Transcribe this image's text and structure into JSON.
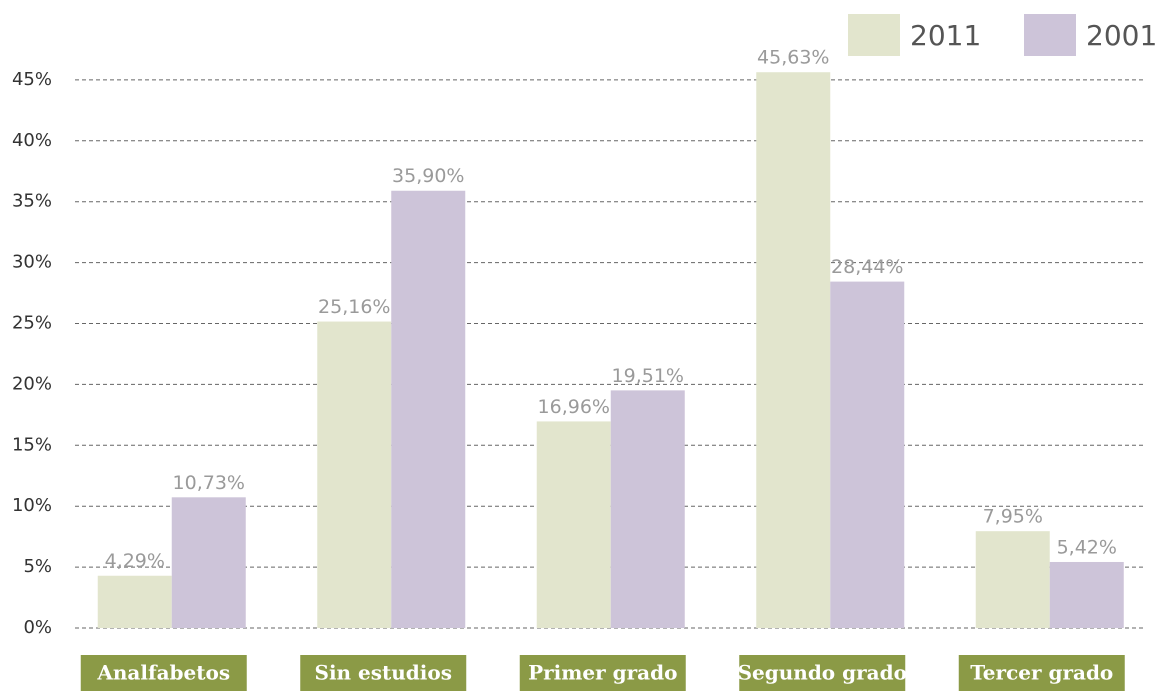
{
  "chart_data": {
    "type": "bar",
    "categories": [
      "Analfabetos",
      "Sin estudios",
      "Primer grado",
      "Segundo grado",
      "Tercer grado"
    ],
    "series": [
      {
        "name": "2011",
        "color": "#e2e5cd",
        "values": [
          4.29,
          25.16,
          16.96,
          45.63,
          7.95
        ],
        "value_labels": [
          "4,29%",
          "25,16%",
          "16,96%",
          "45,63%",
          "7,95%"
        ]
      },
      {
        "name": "2001",
        "color": "#cdc4d9",
        "values": [
          10.73,
          35.9,
          19.51,
          28.44,
          5.42
        ],
        "value_labels": [
          "10,73%",
          "35,90%",
          "19,51%",
          "28,44%",
          "5,42%"
        ]
      }
    ],
    "ylim": [
      0,
      50
    ],
    "yticks": [
      {
        "value": 0,
        "label": "0%"
      },
      {
        "value": 5,
        "label": "5%"
      },
      {
        "value": 10,
        "label": "10%"
      },
      {
        "value": 15,
        "label": "15%"
      },
      {
        "value": 20,
        "label": "20%"
      },
      {
        "value": 25,
        "label": "25%"
      },
      {
        "value": 30,
        "label": "30%"
      },
      {
        "value": 35,
        "label": "35%"
      },
      {
        "value": 40,
        "label": "40%"
      },
      {
        "value": 45,
        "label": "45%"
      }
    ],
    "grid": true,
    "legend": "top-right",
    "category_label_color": "#8b9a46"
  }
}
